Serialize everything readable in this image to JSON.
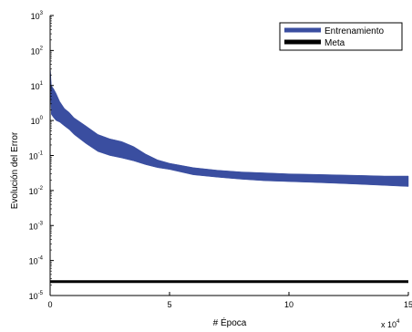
{
  "chart_data": {
    "type": "line",
    "title": "",
    "xlabel": "# Época",
    "ylabel": "Evolución del Error",
    "x_multiplier": "x 10",
    "x_multiplier_exp": "4",
    "xlim": [
      0,
      150000
    ],
    "ylim": [
      1e-05,
      1000
    ],
    "y_scale": "log",
    "x_ticks": [
      {
        "value": 0,
        "label": "0"
      },
      {
        "value": 50000,
        "label": "5"
      },
      {
        "value": 100000,
        "label": "10"
      },
      {
        "value": 150000,
        "label": "15"
      }
    ],
    "y_ticks": [
      {
        "value": 1000.0,
        "base": "10",
        "exp": "3"
      },
      {
        "value": 100.0,
        "base": "10",
        "exp": "2"
      },
      {
        "value": 10.0,
        "base": "10",
        "exp": "1"
      },
      {
        "value": 1.0,
        "base": "10",
        "exp": "0"
      },
      {
        "value": 0.1,
        "base": "10",
        "exp": "-1"
      },
      {
        "value": 0.01,
        "base": "10",
        "exp": "-2"
      },
      {
        "value": 0.001,
        "base": "10",
        "exp": "-3"
      },
      {
        "value": 0.0001,
        "base": "10",
        "exp": "-4"
      },
      {
        "value": 1e-05,
        "base": "10",
        "exp": "-5"
      }
    ],
    "grid": false,
    "legend_position": "top-right",
    "series": [
      {
        "name": "Entrenamiento",
        "color": "#3a4ea0",
        "x": [
          0,
          500,
          1500,
          2500,
          4000,
          6000,
          8000,
          10000,
          15000,
          20000,
          25000,
          30000,
          35000,
          40000,
          45000,
          50000,
          60000,
          70000,
          80000,
          90000,
          100000,
          110000,
          120000,
          130000,
          140000,
          150000
        ],
        "upper": [
          40,
          10,
          8,
          6,
          3.5,
          2.2,
          1.7,
          1.2,
          0.7,
          0.4,
          0.3,
          0.25,
          0.18,
          0.11,
          0.075,
          0.06,
          0.045,
          0.038,
          0.034,
          0.032,
          0.03,
          0.029,
          0.028,
          0.027,
          0.026,
          0.026
        ],
        "lower": [
          20,
          1.5,
          1.2,
          1.0,
          0.9,
          0.7,
          0.55,
          0.4,
          0.22,
          0.13,
          0.1,
          0.085,
          0.07,
          0.055,
          0.045,
          0.04,
          0.028,
          0.024,
          0.021,
          0.019,
          0.018,
          0.017,
          0.016,
          0.015,
          0.014,
          0.013
        ]
      },
      {
        "name": "Meta",
        "color": "#000000",
        "x": [
          0,
          150000
        ],
        "values": [
          2.5e-05,
          2.5e-05
        ]
      }
    ]
  }
}
